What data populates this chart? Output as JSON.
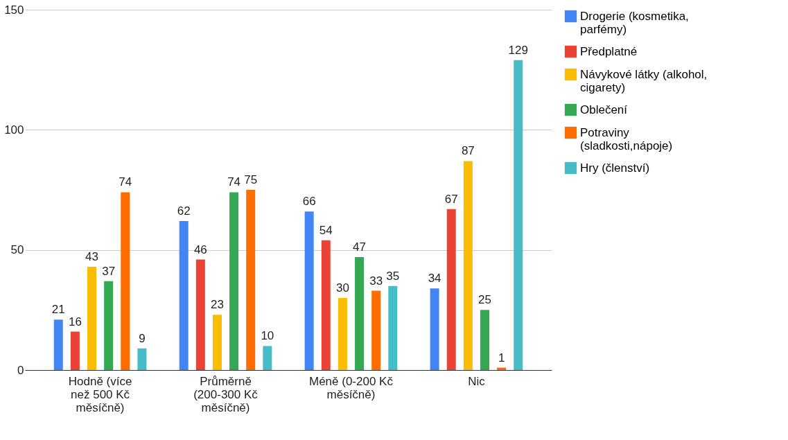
{
  "chart_data": {
    "type": "bar",
    "categories": [
      "Hodně (více než 500 Kč měsíčně)",
      "Průměrně (200-300 Kč měsíčně)",
      "Méně (0-200 Kč měsíčně)",
      "Nic"
    ],
    "series": [
      {
        "name": "Drogerie (kosmetika, parfémy)",
        "color": "#4285f4",
        "values": [
          21,
          62,
          66,
          34
        ]
      },
      {
        "name": "Předplatné",
        "color": "#ea4335",
        "values": [
          16,
          46,
          54,
          67
        ]
      },
      {
        "name": "Návykové látky (alkohol, cigarety)",
        "color": "#fbbc04",
        "values": [
          43,
          23,
          30,
          87
        ]
      },
      {
        "name": "Oblečení",
        "color": "#34a853",
        "values": [
          37,
          74,
          47,
          25
        ]
      },
      {
        "name": "Potraviny (sladkosti,nápoje)",
        "color": "#ff6d01",
        "values": [
          74,
          75,
          33,
          1
        ]
      },
      {
        "name": "Hry (členství)",
        "color": "#46bdc6",
        "values": [
          9,
          10,
          35,
          129
        ]
      }
    ],
    "ylim": [
      0,
      150
    ],
    "yticks": [
      0,
      50,
      100,
      150
    ],
    "grid": "y",
    "legend": "right",
    "data_labels": true
  }
}
